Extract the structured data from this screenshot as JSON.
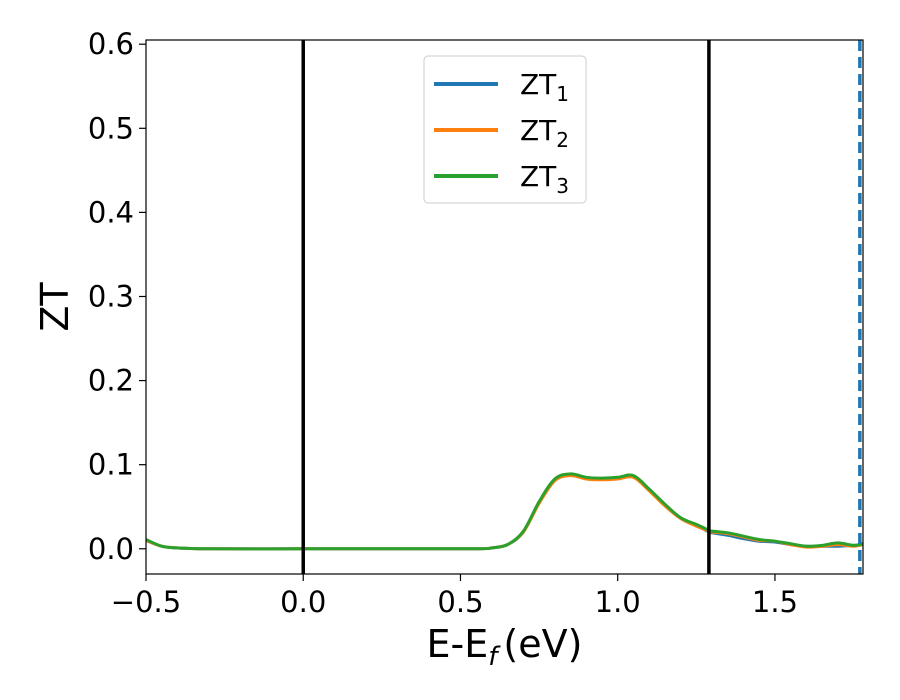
{
  "chart_data": {
    "type": "line",
    "xlabel": "E-E",
    "xlabel_subscript": "f",
    "xlabel_unit": "(eV)",
    "ylabel": "ZT",
    "xlim": [
      -0.5,
      1.78
    ],
    "ylim": [
      -0.03,
      0.605
    ],
    "xticks": [
      -0.5,
      0.0,
      0.5,
      1.0,
      1.5
    ],
    "xtick_labels": [
      "−0.5",
      "0.0",
      "0.5",
      "1.0",
      "1.5"
    ],
    "yticks": [
      0.0,
      0.1,
      0.2,
      0.3,
      0.4,
      0.5,
      0.6
    ],
    "ytick_labels": [
      "0.0",
      "0.1",
      "0.2",
      "0.3",
      "0.4",
      "0.5",
      "0.6"
    ],
    "grid": false,
    "legend_position": "top-center",
    "vlines": [
      {
        "x": 0.0,
        "color": "#000000",
        "style": "solid"
      },
      {
        "x": 1.29,
        "color": "#000000",
        "style": "solid"
      },
      {
        "x": 1.77,
        "color": "#1f77b4",
        "style": "dashed"
      }
    ],
    "series": [
      {
        "name": "ZT",
        "name_subscript": "1",
        "color": "#1f77b4",
        "x": [
          -0.5,
          -0.45,
          -0.4,
          -0.3,
          0.0,
          0.3,
          0.55,
          0.6,
          0.65,
          0.7,
          0.75,
          0.8,
          0.85,
          0.9,
          0.95,
          1.0,
          1.05,
          1.1,
          1.15,
          1.2,
          1.25,
          1.29,
          1.3,
          1.35,
          1.4,
          1.45,
          1.5,
          1.55,
          1.6,
          1.65,
          1.7,
          1.75,
          1.78
        ],
        "y": [
          0.01,
          0.003,
          0.001,
          0.0,
          0.0,
          0.0,
          0.0,
          0.001,
          0.005,
          0.02,
          0.055,
          0.082,
          0.088,
          0.084,
          0.083,
          0.084,
          0.086,
          0.07,
          0.052,
          0.037,
          0.028,
          0.02,
          0.019,
          0.016,
          0.012,
          0.009,
          0.008,
          0.005,
          0.003,
          0.003,
          0.003,
          0.004,
          0.005
        ]
      },
      {
        "name": "ZT",
        "name_subscript": "2",
        "color": "#ff7f0e",
        "x": [
          -0.5,
          -0.45,
          -0.4,
          -0.3,
          0.0,
          0.3,
          0.55,
          0.6,
          0.65,
          0.7,
          0.75,
          0.8,
          0.85,
          0.9,
          0.95,
          1.0,
          1.05,
          1.1,
          1.15,
          1.2,
          1.25,
          1.29,
          1.3,
          1.35,
          1.4,
          1.45,
          1.5,
          1.55,
          1.6,
          1.65,
          1.7,
          1.75,
          1.78
        ],
        "y": [
          0.01,
          0.003,
          0.001,
          0.0,
          0.0,
          0.0,
          0.0,
          0.001,
          0.005,
          0.02,
          0.054,
          0.081,
          0.087,
          0.083,
          0.082,
          0.083,
          0.085,
          0.069,
          0.051,
          0.036,
          0.027,
          0.021,
          0.02,
          0.018,
          0.014,
          0.01,
          0.009,
          0.005,
          0.002,
          0.003,
          0.005,
          0.003,
          0.005
        ]
      },
      {
        "name": "ZT",
        "name_subscript": "3",
        "color": "#2ca02c",
        "x": [
          -0.5,
          -0.45,
          -0.4,
          -0.3,
          0.0,
          0.3,
          0.55,
          0.6,
          0.65,
          0.7,
          0.75,
          0.8,
          0.85,
          0.9,
          0.95,
          1.0,
          1.05,
          1.1,
          1.15,
          1.2,
          1.25,
          1.29,
          1.3,
          1.35,
          1.4,
          1.45,
          1.5,
          1.55,
          1.6,
          1.65,
          1.7,
          1.75,
          1.78
        ],
        "y": [
          0.011,
          0.003,
          0.001,
          0.0,
          0.0,
          0.0,
          0.0,
          0.001,
          0.005,
          0.021,
          0.056,
          0.083,
          0.089,
          0.085,
          0.084,
          0.085,
          0.087,
          0.071,
          0.053,
          0.037,
          0.029,
          0.022,
          0.021,
          0.019,
          0.015,
          0.011,
          0.009,
          0.006,
          0.003,
          0.004,
          0.007,
          0.004,
          0.006
        ]
      }
    ]
  }
}
